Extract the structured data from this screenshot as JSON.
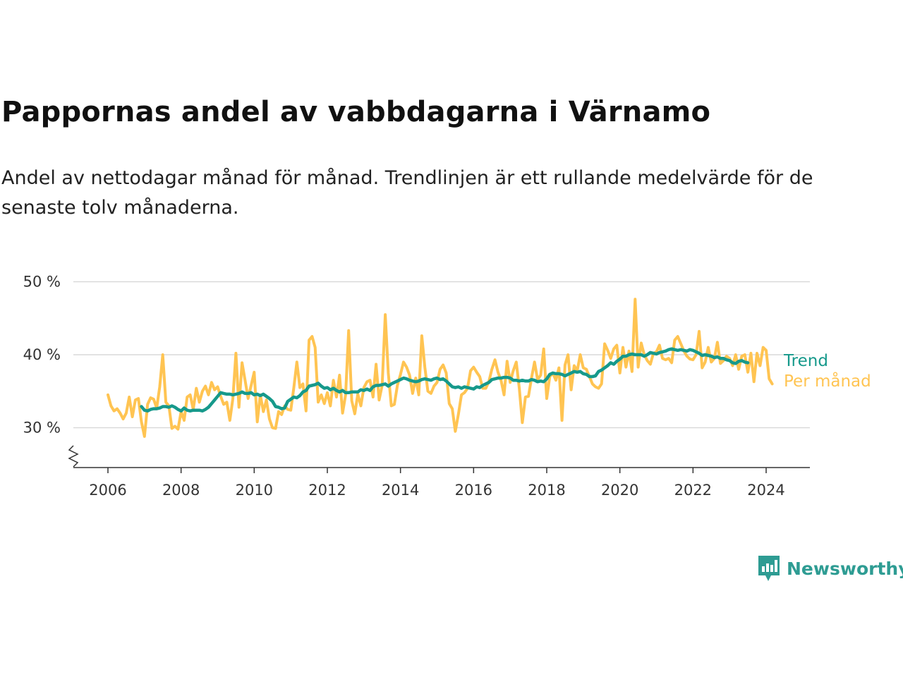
{
  "header": {
    "title": "Pappornas andel av vabbdagarna i Värnamo",
    "subtitle": "Andel av nettodagar månad för månad. Trendlinjen är ett rullande medelvärde för de senaste tolv månaderna."
  },
  "brand": {
    "name": "Newsworthy",
    "color": "#2e9c93"
  },
  "colors": {
    "trend": "#16998b",
    "monthly": "#ffc452",
    "grid": "#d9d9d9",
    "axis": "#333333"
  },
  "chart_data": {
    "type": "line",
    "x_unit": "year (decimal)",
    "y_unit": "%",
    "ylim": [
      25,
      50
    ],
    "yticks": [
      30,
      40,
      50
    ],
    "ytick_labels": [
      "30 %",
      "40 %",
      "50 %"
    ],
    "xticks": [
      2006,
      2008,
      2010,
      2012,
      2014,
      2016,
      2018,
      2020,
      2022,
      2024
    ],
    "xtick_labels": [
      "2006",
      "2008",
      "2010",
      "2012",
      "2014",
      "2016",
      "2018",
      "2020",
      "2022",
      "2024"
    ],
    "xlim": [
      2006,
      2024.5
    ],
    "axis_break": true,
    "grid": true,
    "series": [
      {
        "name": "Per månad",
        "color": "#ffc452",
        "start": 2006.0,
        "step": 0.0833333,
        "values": [
          34.5,
          33.0,
          32.3,
          32.6,
          32.0,
          31.2,
          32.0,
          34.2,
          31.5,
          33.8,
          34.0,
          30.8,
          28.8,
          33.2,
          34.1,
          33.9,
          32.7,
          35.6,
          40.0,
          33.5,
          33.0,
          29.9,
          30.2,
          29.8,
          32.2,
          31.0,
          34.2,
          34.5,
          32.5,
          35.4,
          33.5,
          35.0,
          35.7,
          34.5,
          36.2,
          35.2,
          35.6,
          34.3,
          33.2,
          33.5,
          31.0,
          34.0,
          40.2,
          32.8,
          38.9,
          36.5,
          34.0,
          35.8,
          37.6,
          30.8,
          34.5,
          32.2,
          33.8,
          31.2,
          30.0,
          29.9,
          32.2,
          31.8,
          33.0,
          32.5,
          32.4,
          35.5,
          39.0,
          35.5,
          36.0,
          32.3,
          42.0,
          42.5,
          41.0,
          33.5,
          34.5,
          33.3,
          34.8,
          33.0,
          36.5,
          34.2,
          37.2,
          32.0,
          34.5,
          43.3,
          33.7,
          31.9,
          34.6,
          33.0,
          35.5,
          36.3,
          36.5,
          34.2,
          38.7,
          33.8,
          35.8,
          45.5,
          37.5,
          33.0,
          33.2,
          35.8,
          37.3,
          39.0,
          38.3,
          37.2,
          34.7,
          36.8,
          34.5,
          42.6,
          38.3,
          35.0,
          34.7,
          35.7,
          36.2,
          38.0,
          38.6,
          37.5,
          33.3,
          32.6,
          29.5,
          31.8,
          34.5,
          34.8,
          35.4,
          37.8,
          38.3,
          37.6,
          37.0,
          35.4,
          35.4,
          36.3,
          38.0,
          39.3,
          37.6,
          36.5,
          34.5,
          39.1,
          36.2,
          37.8,
          39.0,
          35.4,
          30.7,
          34.2,
          34.3,
          36.8,
          39.0,
          36.6,
          37.2,
          40.8,
          34.0,
          37.0,
          37.5,
          36.5,
          38.2,
          31.0,
          38.6,
          40.0,
          35.2,
          38.5,
          37.8,
          40.0,
          38.2,
          38.0,
          37.0,
          36.0,
          35.6,
          35.4,
          36.0,
          41.5,
          40.6,
          39.5,
          40.8,
          41.3,
          37.5,
          41.0,
          38.3,
          40.5,
          37.7,
          47.6,
          38.3,
          41.6,
          40.0,
          39.2,
          38.7,
          40.2,
          40.4,
          41.3,
          39.5,
          39.3,
          39.5,
          38.9,
          42.0,
          42.5,
          41.5,
          40.5,
          39.8,
          39.4,
          39.3,
          40.0,
          43.2,
          38.2,
          39.0,
          41.0,
          39.0,
          39.5,
          41.7,
          38.8,
          39.2,
          39.8,
          39.5,
          38.5,
          40.0,
          38.0,
          39.8,
          40.0,
          37.6,
          40.2,
          36.3,
          40.2,
          38.5,
          41.0,
          40.6,
          36.7,
          36.0
        ]
      },
      {
        "name": "Trend",
        "color": "#16998b",
        "start": 2006.9167,
        "step": 0.0833333,
        "values": [
          32.9,
          32.4,
          32.3,
          32.5,
          32.6,
          32.6,
          32.7,
          32.9,
          32.9,
          32.8,
          33.0,
          32.8,
          32.5,
          32.3,
          32.7,
          32.4,
          32.3,
          32.4,
          32.4,
          32.4,
          32.3,
          32.5,
          32.8,
          33.3,
          33.8,
          34.3,
          34.8,
          34.7,
          34.6,
          34.6,
          34.5,
          34.6,
          34.7,
          34.9,
          34.7,
          34.7,
          34.8,
          34.5,
          34.6,
          34.4,
          34.6,
          34.3,
          34.0,
          33.6,
          32.9,
          32.8,
          32.6,
          32.7,
          33.6,
          33.9,
          34.2,
          34.1,
          34.4,
          34.9,
          35.1,
          35.7,
          35.8,
          35.9,
          36.1,
          35.7,
          35.4,
          35.5,
          35.2,
          35.4,
          35.1,
          34.9,
          35.1,
          34.8,
          34.8,
          34.9,
          34.9,
          34.9,
          35.2,
          35.1,
          35.3,
          35.1,
          35.6,
          35.8,
          35.8,
          35.9,
          36.0,
          35.7,
          36.0,
          36.2,
          36.4,
          36.6,
          36.8,
          36.7,
          36.5,
          36.4,
          36.3,
          36.4,
          36.6,
          36.7,
          36.6,
          36.5,
          36.7,
          36.8,
          36.6,
          36.7,
          36.4,
          36.0,
          35.6,
          35.5,
          35.6,
          35.4,
          35.6,
          35.5,
          35.4,
          35.3,
          35.6,
          35.5,
          35.8,
          36.0,
          36.2,
          36.6,
          36.7,
          36.8,
          36.8,
          36.9,
          36.9,
          36.8,
          36.5,
          36.5,
          36.4,
          36.5,
          36.4,
          36.4,
          36.6,
          36.5,
          36.3,
          36.4,
          36.3,
          36.7,
          37.3,
          37.5,
          37.4,
          37.4,
          37.3,
          37.1,
          37.3,
          37.5,
          37.7,
          37.6,
          37.7,
          37.4,
          37.3,
          37.0,
          37.0,
          37.1,
          37.7,
          37.9,
          38.2,
          38.5,
          38.9,
          38.7,
          39.1,
          39.4,
          39.8,
          39.8,
          40.0,
          40.1,
          40.0,
          40.0,
          40.0,
          39.8,
          40.0,
          40.3,
          40.2,
          40.1,
          40.3,
          40.4,
          40.5,
          40.7,
          40.8,
          40.7,
          40.6,
          40.7,
          40.6,
          40.5,
          40.7,
          40.6,
          40.4,
          40.2,
          39.9,
          40.0,
          39.9,
          39.8,
          39.6,
          39.7,
          39.5,
          39.5,
          39.3,
          39.2,
          38.9,
          38.8,
          39.1,
          39.2,
          39.0,
          38.9
        ]
      }
    ],
    "end_labels": [
      {
        "series": "Trend",
        "text": "Trend"
      },
      {
        "series": "Per månad",
        "text": "Per månad"
      }
    ]
  }
}
